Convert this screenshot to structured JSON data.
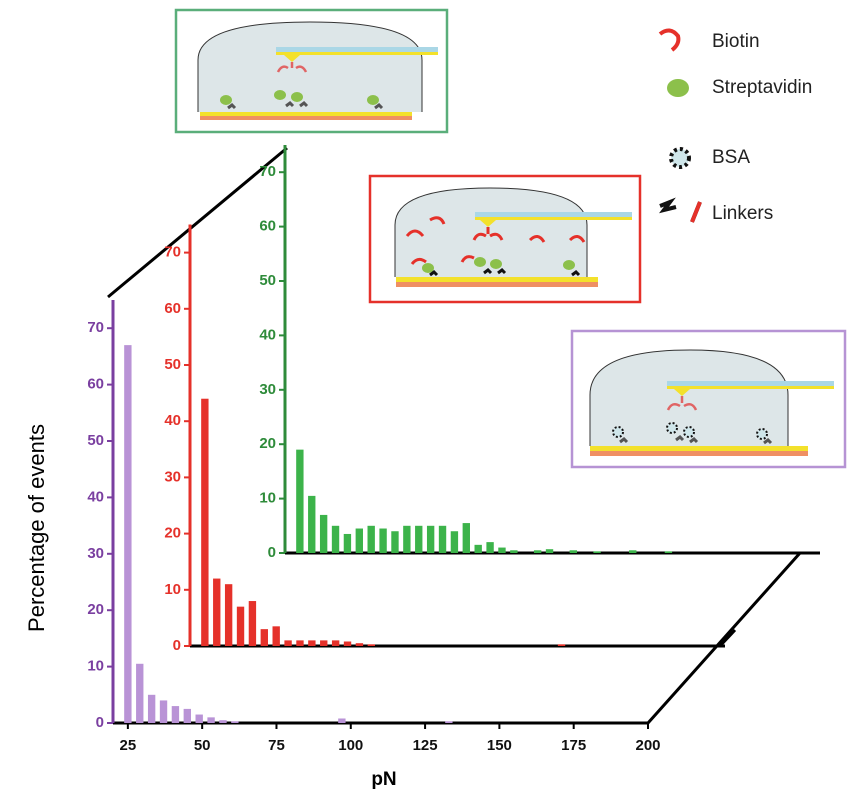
{
  "chart_data": {
    "type": "bar",
    "x_label": "pN",
    "y_label": "Percentage of events",
    "x": [
      25,
      29,
      33,
      37,
      41,
      45,
      49,
      53,
      57,
      61,
      65,
      69,
      73,
      77,
      81,
      85,
      89,
      93,
      97,
      101,
      105,
      109,
      113,
      117,
      121,
      125,
      129,
      133,
      137,
      141,
      145,
      149,
      153,
      157,
      161,
      165,
      169,
      173,
      177,
      181,
      185,
      189,
      193,
      197
    ],
    "xlim": [
      20,
      200
    ],
    "xticks": [
      25,
      50,
      75,
      100,
      125,
      150,
      175,
      200
    ],
    "ylim": [
      0,
      75
    ],
    "yticks": [
      0,
      10,
      20,
      30,
      40,
      50,
      60,
      70
    ],
    "series": [
      {
        "color": "#b993d6",
        "axis_color": "#7a3fa0",
        "values": [
          67,
          10.5,
          5,
          4,
          3,
          2.5,
          1.5,
          1,
          0.5,
          0.3,
          0,
          0,
          0,
          0,
          0,
          0,
          0,
          0,
          0.8,
          0,
          0,
          0,
          0,
          0,
          0,
          0,
          0,
          0.3,
          0,
          0,
          0,
          0,
          0,
          0,
          0,
          0,
          0,
          0,
          0,
          0,
          0,
          0,
          0,
          0
        ]
      },
      {
        "color": "#e5312a",
        "axis_color": "#e5312a",
        "values": [
          44,
          12,
          11,
          7,
          8,
          3,
          3.5,
          1,
          1,
          1,
          1,
          1,
          0.8,
          0.5,
          0.3,
          0,
          0,
          0,
          0,
          0,
          0,
          0,
          0,
          0,
          0,
          0,
          0,
          0,
          0,
          0,
          0.3,
          0,
          0,
          0,
          0,
          0,
          0,
          0,
          0,
          0,
          0,
          0,
          0,
          0
        ]
      },
      {
        "color": "#3cb34a",
        "axis_color": "#2e8b3a",
        "values": [
          19,
          10.5,
          7,
          5,
          3.5,
          4.5,
          5,
          4.5,
          4,
          5,
          5,
          5,
          5,
          4,
          5.5,
          1.5,
          2,
          1,
          0.5,
          0,
          0.5,
          0.7,
          0,
          0.5,
          0,
          0.3,
          0,
          0,
          0.5,
          0,
          0,
          0.3,
          0,
          0,
          0,
          0,
          0,
          0,
          0,
          0,
          0,
          0,
          0,
          0
        ]
      }
    ]
  },
  "schematic_legend": [
    "Biotin",
    "Streptavidin",
    "BSA",
    "Linkers"
  ]
}
